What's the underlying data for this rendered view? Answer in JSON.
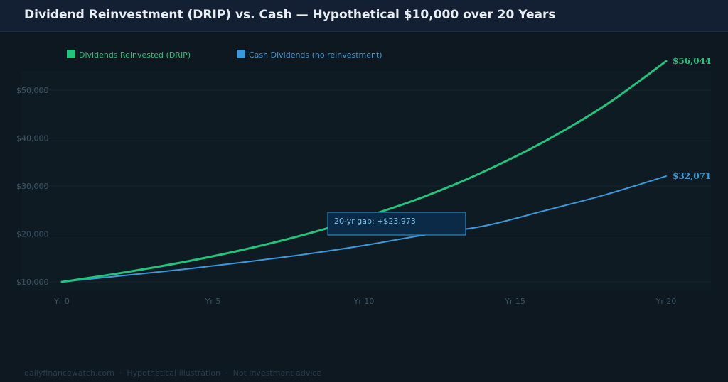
{
  "title": "Dividend Reinvestment (DRIP) vs. Cash — Hypothetical $10,000 over 20 Years",
  "chart_data": {
    "type": "line",
    "title": "Dividend Reinvestment (DRIP) vs. Cash — Hypothetical $10,000 over 20 Years",
    "x": [
      0,
      2,
      4,
      6,
      8,
      10,
      12,
      14,
      16,
      18,
      20
    ],
    "x_tick_labels": [
      "Yr 0",
      "Yr 5",
      "Yr 10",
      "Yr 15",
      "Yr 20"
    ],
    "x_tick_values": [
      0,
      5,
      10,
      15,
      20
    ],
    "y_tick_labels": [
      "$10,000",
      "$20,000",
      "$30,000",
      "$40,000",
      "$50,000"
    ],
    "y_tick_values": [
      10000,
      20000,
      30000,
      40000,
      50000
    ],
    "xlim": [
      0,
      20
    ],
    "ylim": [
      8000,
      60000
    ],
    "grid": true,
    "legend": "top-left",
    "series": [
      {
        "name": "Dividends Reinvested (DRIP)",
        "color": "#22c37a",
        "values": [
          10000,
          11900,
          14100,
          16700,
          19800,
          23500,
          27800,
          33100,
          39400,
          46900,
          56044
        ],
        "end_label": "$56,044"
      },
      {
        "name": "Cash Dividends (no reinvestment)",
        "color": "#3a9ad9",
        "values": [
          10000,
          11300,
          12600,
          14100,
          15700,
          17600,
          19800,
          21700,
          24900,
          28200,
          32071
        ],
        "end_label": "$32,071"
      }
    ],
    "annotation": {
      "text": "20-yr gap: +$23,973"
    }
  },
  "footer": {
    "source": "dailyfinancewatch.com",
    "note1": "Hypothetical illustration",
    "note2": "Not investment advice",
    "separator": "·"
  }
}
